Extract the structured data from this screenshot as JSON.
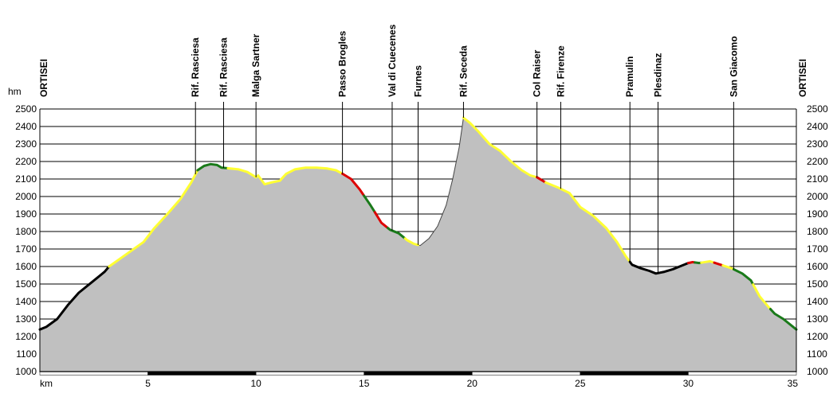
{
  "chart_data": {
    "type": "area",
    "title": "",
    "xlabel": "km",
    "ylabel": "hm",
    "xlim": [
      0,
      35
    ],
    "ylim": [
      1000,
      2500
    ],
    "x_ticks": [
      {
        "value": 5,
        "label": "5"
      },
      {
        "value": 10,
        "label": "10"
      },
      {
        "value": 15,
        "label": "15"
      },
      {
        "value": 20,
        "label": "20"
      },
      {
        "value": 25,
        "label": "25"
      },
      {
        "value": 30,
        "label": "30"
      },
      {
        "value": 35,
        "label": "35"
      }
    ],
    "y_ticks": [
      1000,
      1100,
      1200,
      1300,
      1400,
      1500,
      1600,
      1700,
      1800,
      1900,
      2000,
      2100,
      2200,
      2300,
      2400,
      2500
    ],
    "grid": true,
    "profile": [
      [
        0,
        1240
      ],
      [
        0.3,
        1255
      ],
      [
        0.8,
        1300
      ],
      [
        1.3,
        1380
      ],
      [
        1.8,
        1450
      ],
      [
        2.4,
        1510
      ],
      [
        3.0,
        1570
      ],
      [
        3.2,
        1600
      ],
      [
        4.0,
        1670
      ],
      [
        4.8,
        1740
      ],
      [
        5.3,
        1820
      ],
      [
        5.9,
        1900
      ],
      [
        6.5,
        1985
      ],
      [
        7.0,
        2080
      ],
      [
        7.3,
        2150
      ],
      [
        7.6,
        2175
      ],
      [
        7.9,
        2185
      ],
      [
        8.2,
        2180
      ],
      [
        8.4,
        2165
      ],
      [
        8.8,
        2160
      ],
      [
        9.2,
        2155
      ],
      [
        9.6,
        2140
      ],
      [
        10.0,
        2110
      ],
      [
        10.1,
        2120
      ],
      [
        10.4,
        2070
      ],
      [
        10.7,
        2080
      ],
      [
        11.1,
        2090
      ],
      [
        11.4,
        2130
      ],
      [
        11.8,
        2155
      ],
      [
        12.3,
        2165
      ],
      [
        12.8,
        2165
      ],
      [
        13.3,
        2160
      ],
      [
        13.7,
        2150
      ],
      [
        14.0,
        2130
      ],
      [
        14.4,
        2100
      ],
      [
        14.8,
        2040
      ],
      [
        15.3,
        1950
      ],
      [
        15.8,
        1850
      ],
      [
        16.2,
        1810
      ],
      [
        16.6,
        1790
      ],
      [
        17.0,
        1750
      ],
      [
        17.3,
        1730
      ],
      [
        17.6,
        1720
      ],
      [
        18.0,
        1760
      ],
      [
        18.4,
        1830
      ],
      [
        18.8,
        1950
      ],
      [
        19.1,
        2100
      ],
      [
        19.4,
        2280
      ],
      [
        19.6,
        2450
      ],
      [
        19.9,
        2420
      ],
      [
        20.3,
        2370
      ],
      [
        20.8,
        2300
      ],
      [
        21.3,
        2260
      ],
      [
        21.8,
        2200
      ],
      [
        22.3,
        2150
      ],
      [
        22.7,
        2120
      ],
      [
        23.0,
        2110
      ],
      [
        23.4,
        2080
      ],
      [
        24.0,
        2050
      ],
      [
        24.5,
        2020
      ],
      [
        25.0,
        1940
      ],
      [
        25.6,
        1890
      ],
      [
        26.2,
        1820
      ],
      [
        26.7,
        1740
      ],
      [
        27.1,
        1660
      ],
      [
        27.4,
        1610
      ],
      [
        27.8,
        1590
      ],
      [
        28.2,
        1575
      ],
      [
        28.5,
        1560
      ],
      [
        28.9,
        1570
      ],
      [
        29.3,
        1585
      ],
      [
        29.6,
        1600
      ],
      [
        30.0,
        1620
      ],
      [
        30.2,
        1625
      ],
      [
        30.5,
        1620
      ],
      [
        31.0,
        1630
      ],
      [
        31.5,
        1610
      ],
      [
        32.0,
        1590
      ],
      [
        32.5,
        1560
      ],
      [
        32.9,
        1520
      ],
      [
        33.3,
        1430
      ],
      [
        33.7,
        1370
      ],
      [
        34.0,
        1330
      ],
      [
        34.4,
        1300
      ],
      [
        34.8,
        1260
      ],
      [
        35.0,
        1240
      ]
    ],
    "segments": [
      {
        "from": 0,
        "to": 3.2,
        "color": "#000000"
      },
      {
        "from": 3.2,
        "to": 7.3,
        "color": "#ffff33"
      },
      {
        "from": 7.3,
        "to": 8.7,
        "color": "#1a7a1a"
      },
      {
        "from": 8.7,
        "to": 14.0,
        "color": "#ffff33"
      },
      {
        "from": 14.0,
        "to": 15.0,
        "color": "#dd0000"
      },
      {
        "from": 15.0,
        "to": 15.5,
        "color": "#1a7a1a"
      },
      {
        "from": 15.5,
        "to": 16.1,
        "color": "#dd0000"
      },
      {
        "from": 16.1,
        "to": 16.9,
        "color": "#1a7a1a"
      },
      {
        "from": 16.9,
        "to": 17.5,
        "color": "#ffff33"
      },
      {
        "from": 19.6,
        "to": 23.0,
        "color": "#ffff33"
      },
      {
        "from": 23.0,
        "to": 23.4,
        "color": "#dd0000"
      },
      {
        "from": 23.4,
        "to": 27.3,
        "color": "#ffff33"
      },
      {
        "from": 27.3,
        "to": 30.0,
        "color": "#000000"
      },
      {
        "from": 30.0,
        "to": 30.3,
        "color": "#dd0000"
      },
      {
        "from": 30.3,
        "to": 30.6,
        "color": "#1a7a1a"
      },
      {
        "from": 30.6,
        "to": 31.2,
        "color": "#ffff33"
      },
      {
        "from": 31.2,
        "to": 31.6,
        "color": "#dd0000"
      },
      {
        "from": 31.6,
        "to": 32.1,
        "color": "#ffff33"
      },
      {
        "from": 32.1,
        "to": 33.0,
        "color": "#1a7a1a"
      },
      {
        "from": 33.0,
        "to": 33.8,
        "color": "#ffff33"
      },
      {
        "from": 33.8,
        "to": 35.0,
        "color": "#1a7a1a"
      }
    ],
    "waypoints": [
      {
        "name": "ORTISEI",
        "x": 0,
        "edge": true
      },
      {
        "name": "Rif. Rasciesa",
        "x": 7.2
      },
      {
        "name": "Rif. Rasciesa",
        "x": 8.5
      },
      {
        "name": "Malga Sartner",
        "x": 10.0
      },
      {
        "name": "Passo Brogles",
        "x": 14.0
      },
      {
        "name": "Val di Cuecenes",
        "x": 16.3
      },
      {
        "name": "Furnes",
        "x": 17.5
      },
      {
        "name": "Rif. Seceda",
        "x": 19.6
      },
      {
        "name": "Col Raiser",
        "x": 23.0
      },
      {
        "name": "Rif. Firenze",
        "x": 24.1
      },
      {
        "name": "Pramulin",
        "x": 27.3
      },
      {
        "name": "Plesdinaz",
        "x": 28.6
      },
      {
        "name": "San Giacomo",
        "x": 32.1
      },
      {
        "name": "ORTISEI",
        "x": 35,
        "edge": true
      }
    ],
    "colors": {
      "fill": "#c0c0c0",
      "grid": "#000000",
      "black": "#000000",
      "yellow": "#ffff33",
      "green": "#1a7a1a",
      "red": "#dd0000"
    }
  }
}
